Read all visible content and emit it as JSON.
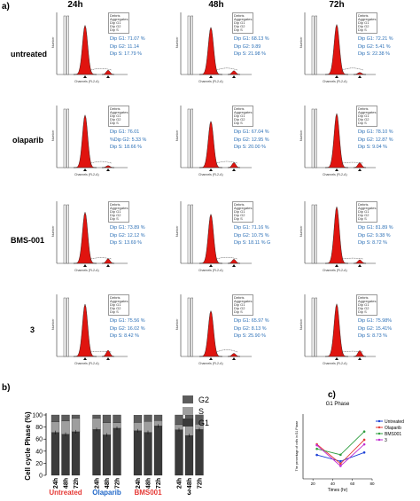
{
  "panels": {
    "a": "a)",
    "b": "b)",
    "c": "c)"
  },
  "panel_a": {
    "columns": [
      "24h",
      "48h",
      "72h"
    ],
    "rows": [
      {
        "label": "untreated",
        "cells": [
          {
            "stats": [
              "Dip G1: 71.07 %",
              "Dip G2: 11.14",
              "Dip S: 17.79 %"
            ],
            "g1": 71.07,
            "g2": 11.14,
            "s": 17.79
          },
          {
            "stats": [
              "Dip G1: 68.13 %",
              "Dip G2: 9.89",
              "Dip S: 21.98 %"
            ],
            "g1": 68.13,
            "g2": 9.89,
            "s": 21.98
          },
          {
            "stats": [
              "Dip G1: 72.21 %",
              "Dip G2: 5.41 %",
              "Dip S: 22.38 %"
            ],
            "g1": 72.21,
            "g2": 5.41,
            "s": 22.38
          }
        ]
      },
      {
        "label": "olaparib",
        "cells": [
          {
            "stats": [
              "Dip G1: 76.01",
              "%Dip G2: 5.33 %",
              "Dip S: 18.66 %"
            ],
            "g1": 76.01,
            "g2": 5.33,
            "s": 18.66
          },
          {
            "stats": [
              "Dip G1: 67.04 %",
              "Dip G2: 12.95 %",
              "Dip S: 20.00 %"
            ],
            "g1": 67.04,
            "g2": 12.95,
            "s": 20.0
          },
          {
            "stats": [
              "Dip G1: 78.10 %",
              "Dip G2: 12.87 %",
              "Dip S: 9.04 %"
            ],
            "g1": 78.1,
            "g2": 12.87,
            "s": 9.04
          }
        ]
      },
      {
        "label": "BMS-001",
        "cells": [
          {
            "stats": [
              "Dip G1: 73.89 %",
              "Dip G2: 12.12 %",
              "Dip S: 13.69 %"
            ],
            "g1": 73.89,
            "g2": 12.12,
            "s": 13.69
          },
          {
            "stats": [
              "Dip G1: 71.16 %",
              "Dip G2: 10.75 %",
              "Dip S: 18.11 % G"
            ],
            "g1": 71.16,
            "g2": 10.75,
            "s": 18.11
          },
          {
            "stats": [
              "Dip G1: 81.89 %",
              "Dip G2: 9.38 %",
              "Dip S: 8.72 %"
            ],
            "g1": 81.89,
            "g2": 9.38,
            "s": 8.72
          }
        ]
      },
      {
        "label": "3",
        "cells": [
          {
            "stats": [
              "Dip G1: 75.56 %",
              "Dip G2: 16.02 %",
              "Dip S: 8.42 %"
            ],
            "g1": 75.56,
            "g2": 16.02,
            "s": 8.42
          },
          {
            "stats": [
              "Dip G1: 65.97 %",
              "Dip G2: 8.13 %",
              "Dip S: 25.90 %"
            ],
            "g1": 65.97,
            "g2": 8.13,
            "s": 25.9
          },
          {
            "stats": [
              "Dip G1: 75.98%",
              "Dip G2: 15.41%",
              "Dip S: 8.73 %"
            ],
            "g1": 75.98,
            "g2": 15.41,
            "s": 8.73
          }
        ]
      }
    ],
    "xaxis": "Channels (FL2-A)",
    "yaxis": "Number",
    "legend": [
      "Debris",
      "Aggregates",
      "Dip G1",
      "Dip G2",
      "Dip S"
    ]
  },
  "chart_data": [
    {
      "type": "bar",
      "stacked": true,
      "title": "",
      "ylabel": "Cell cycle Phase (%)",
      "ylim": [
        0,
        100
      ],
      "yticks": [
        0,
        20,
        40,
        60,
        80,
        100
      ],
      "categories": [
        "24h",
        "48h",
        "72h",
        "24h",
        "48h",
        "72h",
        "24h",
        "48h",
        "72h",
        "24h",
        "48h",
        "72h"
      ],
      "groups": [
        {
          "name": "Untreated",
          "color": "#e53935"
        },
        {
          "name": "Olaparib",
          "color": "#1e66c8"
        },
        {
          "name": "BMS001",
          "color": "#e53935"
        },
        {
          "name": "3",
          "color": "#000000"
        }
      ],
      "series": [
        {
          "name": "G1",
          "color": "#3a3a3a",
          "values": [
            71.07,
            68.13,
            72.21,
            76.01,
            67.04,
            78.1,
            73.89,
            71.16,
            81.89,
            75.56,
            65.97,
            75.98
          ]
        },
        {
          "name": "S",
          "color": "#9e9e9e",
          "values": [
            17.79,
            21.98,
            22.38,
            18.66,
            20.0,
            9.04,
            13.69,
            18.11,
            8.72,
            8.42,
            25.9,
            8.73
          ]
        },
        {
          "name": "G2",
          "color": "#5c5c5c",
          "values": [
            11.14,
            9.89,
            5.41,
            5.33,
            12.95,
            12.87,
            12.12,
            10.75,
            9.38,
            16.02,
            8.13,
            15.41
          ]
        }
      ],
      "legend": [
        "G2",
        "S",
        "G1"
      ],
      "legend_position": "right"
    },
    {
      "type": "line",
      "title": "G1 Phase",
      "xlabel": "Times (hr)",
      "ylabel": "The percentage of cells in G1 Phase",
      "xlim": [
        0,
        80
      ],
      "xticks": [
        20,
        40,
        60,
        80
      ],
      "x": [
        24,
        48,
        72
      ],
      "series": [
        {
          "name": "Untreated",
          "color": "#1a3fd6",
          "values": [
            71.07,
            68.13,
            72.21
          ]
        },
        {
          "name": "Olaparib",
          "color": "#e53935",
          "values": [
            76.01,
            67.04,
            78.1
          ]
        },
        {
          "name": "BMS001",
          "color": "#2e9e3e",
          "values": [
            73.89,
            71.16,
            81.89
          ]
        },
        {
          "name": "3",
          "color": "#c02bd1",
          "values": [
            75.56,
            65.97,
            75.98
          ]
        }
      ],
      "legend_position": "right"
    }
  ]
}
